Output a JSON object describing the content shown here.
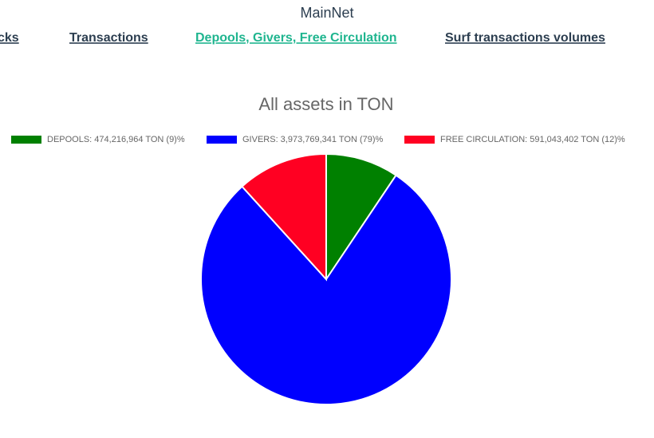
{
  "header": {
    "title": "MainNet"
  },
  "nav": [
    "cks",
    "Transactions",
    "Depools, Givers, Free Circulation",
    "Surf transactions volumes"
  ],
  "chart_data": {
    "type": "pie",
    "title": "All assets in TON",
    "categories": [
      "DEPOOLS: 474,216,964 TON (9)%",
      "GIVERS: 3,973,769,341 TON (79)%",
      "FREE CIRCULATION: 591,043,402 TON (12)%"
    ],
    "values": [
      474216964,
      3973769341,
      591043402
    ],
    "colors": [
      "#008000",
      "#0000ff",
      "#ff0022"
    ],
    "legend": "top"
  }
}
